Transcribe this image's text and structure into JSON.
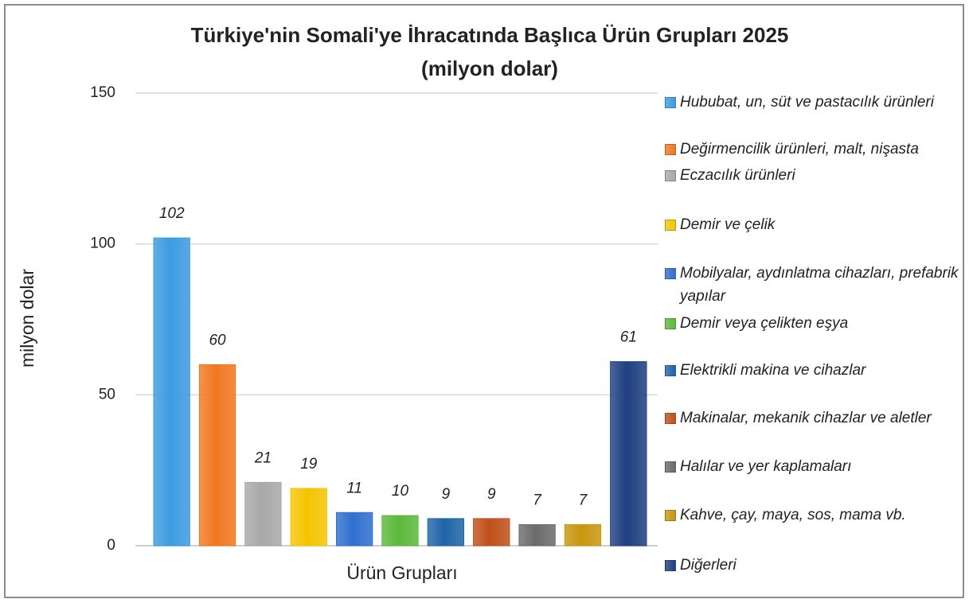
{
  "chart_data": {
    "type": "bar",
    "title": "Türkiye'nin Somali'ye İhracatında Başlıca Ürün Grupları 2025",
    "subtitle": "(milyon dolar)",
    "x_label": "Ürün Grupları",
    "y_label": "milyon dolar",
    "categories": [
      "Hububat, un, süt ve pastacılık ürünleri",
      "Değirmencilik ürünleri, malt, nişasta",
      "Eczacılık ürünleri",
      "Demir ve çelik",
      "Mobilyalar, aydınlatma cihazları, prefabrik yapılar",
      "Demir veya çelikten eşya",
      "Elektrikli makina ve cihazlar",
      "Makinalar, mekanik cihazlar ve aletler",
      "Halılar ve yer kaplamaları",
      "Kahve, çay, maya, sos, mama vb.",
      "Diğerleri"
    ],
    "values": [
      102,
      60,
      21,
      19,
      11,
      10,
      9,
      9,
      7,
      7,
      61
    ],
    "colors": [
      "#3c9be0",
      "#f07820",
      "#a8a8a8",
      "#f5c400",
      "#2f6fcf",
      "#5cb83a",
      "#1f64a8",
      "#c0501a",
      "#6b6b6b",
      "#c8960e",
      "#1f3f80"
    ],
    "ylim": [
      0,
      150
    ],
    "yticks": [
      0,
      50,
      100,
      150
    ],
    "grid": true,
    "legend": "right"
  }
}
